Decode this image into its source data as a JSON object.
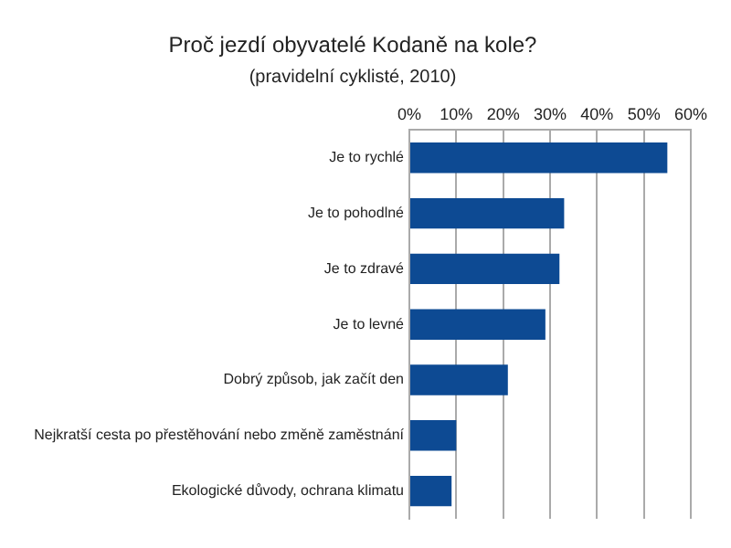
{
  "chart_data": {
    "type": "bar",
    "orientation": "horizontal",
    "title": "Proč jezdí obyvatelé Kodaně na kole?",
    "subtitle": "(pravidelní cyklisté, 2010)",
    "categories": [
      "Je to rychlé",
      "Je to pohodlné",
      "Je to zdravé",
      "Je to levné",
      "Dobrý způsob, jak začít den",
      "Nejkratší cesta po přestěhování nebo změně zaměstnání",
      "Ekologické důvody, ochrana klimatu"
    ],
    "values": [
      55,
      33,
      32,
      29,
      21,
      10,
      9
    ],
    "color": "#0d4a93",
    "xlim": [
      0,
      60
    ],
    "xticks": [
      {
        "value": 0,
        "label": "0%"
      },
      {
        "value": 10,
        "label": "10%"
      },
      {
        "value": 20,
        "label": "20%"
      },
      {
        "value": 30,
        "label": "30%"
      },
      {
        "value": 40,
        "label": "40%"
      },
      {
        "value": 50,
        "label": "50%"
      },
      {
        "value": 60,
        "label": "60%"
      }
    ],
    "grid": "x",
    "legend": false
  }
}
